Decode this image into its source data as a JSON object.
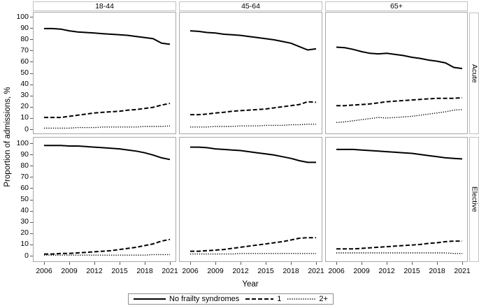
{
  "figure_colors": {
    "line": "#000000",
    "panel_border": "#a8a8a8",
    "strip_border": "#c2c2c2",
    "tick": "#5a5a5a",
    "background": "#ffffff"
  },
  "legend": {
    "items": [
      {
        "label": "No frailty syndromes",
        "style": "solid"
      },
      {
        "label": "1",
        "style": "dashed"
      },
      {
        "label": "2+",
        "style": "dotted"
      }
    ]
  },
  "chart_data": {
    "type": "line",
    "title": "",
    "xlabel": "Year",
    "ylabel": "Proportion of admissions, %",
    "ylim": [
      0,
      100
    ],
    "y_ticks": [
      0,
      10,
      20,
      30,
      40,
      50,
      60,
      70,
      80,
      90,
      100
    ],
    "x_ticks": [
      2006,
      2009,
      2012,
      2015,
      2018,
      2021
    ],
    "x": [
      2006,
      2007,
      2008,
      2009,
      2010,
      2011,
      2012,
      2013,
      2014,
      2015,
      2016,
      2017,
      2018,
      2019,
      2020,
      2021
    ],
    "grid": false,
    "legend_position": "bottom",
    "facets": {
      "columns": [
        "18-44",
        "45-64",
        "65+"
      ],
      "rows": [
        "Acute",
        "Elective"
      ]
    },
    "panels": [
      {
        "column": "18-44",
        "row": "Acute",
        "series": [
          {
            "name": "No frailty syndromes",
            "style": "solid",
            "values": [
              89.5,
              89.5,
              89,
              87.5,
              86.5,
              86,
              85.5,
              85,
              84.5,
              84,
              83.5,
              82.5,
              81.5,
              80.5,
              76.5,
              75.5
            ]
          },
          {
            "name": "1",
            "style": "dashed",
            "values": [
              10.5,
              10.5,
              10.5,
              11.5,
              12.5,
              13.5,
              14.5,
              15,
              15.5,
              16,
              17,
              17.5,
              18.5,
              19.5,
              21.5,
              23
            ]
          },
          {
            "name": "2+",
            "style": "dotted",
            "values": [
              1,
              1,
              1,
              1,
              1.5,
              1.5,
              1.5,
              2,
              2,
              2,
              2,
              2,
              2.5,
              2.5,
              2.5,
              3
            ]
          }
        ]
      },
      {
        "column": "45-64",
        "row": "Acute",
        "series": [
          {
            "name": "No frailty syndromes",
            "style": "solid",
            "values": [
              87.5,
              87,
              86,
              85.5,
              84.5,
              84,
              83.5,
              82.5,
              81.5,
              80.5,
              79.5,
              78,
              76.5,
              73.5,
              70.5,
              71.5
            ]
          },
          {
            "name": "1",
            "style": "dashed",
            "values": [
              13,
              13,
              13.5,
              14.5,
              15,
              16,
              16.5,
              17,
              17.5,
              18,
              19,
              20,
              21,
              22,
              24.5,
              24
            ]
          },
          {
            "name": "2+",
            "style": "dotted",
            "values": [
              2,
              2,
              2,
              2.5,
              2.5,
              2.5,
              3,
              3,
              3,
              3.5,
              3.5,
              3.5,
              4,
              4,
              4.5,
              4.5
            ]
          }
        ]
      },
      {
        "column": "65+",
        "row": "Acute",
        "series": [
          {
            "name": "No frailty syndromes",
            "style": "solid",
            "values": [
              73,
              72.5,
              71,
              69,
              67.5,
              67,
              67.5,
              66.5,
              65.5,
              64,
              63,
              61.5,
              60.5,
              59,
              55,
              54
            ]
          },
          {
            "name": "1",
            "style": "dashed",
            "values": [
              21,
              21,
              21.5,
              22,
              22.5,
              23.5,
              24.5,
              25,
              25.5,
              26,
              26.5,
              27,
              27.5,
              27.5,
              27.5,
              28
            ]
          },
          {
            "name": "2+",
            "style": "dotted",
            "values": [
              6,
              6.5,
              7.5,
              8.5,
              9.5,
              10.5,
              10,
              10.5,
              11,
              11.5,
              12.5,
              13.5,
              14.5,
              15.5,
              17,
              17.5
            ]
          }
        ]
      },
      {
        "column": "18-44",
        "row": "Elective",
        "series": [
          {
            "name": "No frailty syndromes",
            "style": "solid",
            "values": [
              98,
              98,
              98,
              97.5,
              97.5,
              97,
              96.5,
              96,
              95.5,
              95,
              94,
              93,
              91.5,
              89.5,
              87,
              85.5
            ]
          },
          {
            "name": "1",
            "style": "dashed",
            "values": [
              1.5,
              1.5,
              2,
              2,
              2.5,
              3,
              3.5,
              4,
              4.5,
              5.5,
              6.5,
              7.5,
              9,
              10.5,
              13,
              14.5
            ]
          },
          {
            "name": "2+",
            "style": "dotted",
            "values": [
              0.5,
              0.5,
              0.5,
              0.5,
              0.5,
              0.5,
              0.5,
              0.5,
              0.5,
              0.5,
              0.5,
              0.5,
              0.5,
              1,
              1,
              1
            ]
          }
        ]
      },
      {
        "column": "45-64",
        "row": "Elective",
        "series": [
          {
            "name": "No frailty syndromes",
            "style": "solid",
            "values": [
              96.5,
              96.5,
              96,
              95,
              94.5,
              94,
              93.5,
              92.5,
              91.5,
              90.5,
              89.5,
              88,
              86.5,
              84.5,
              83,
              83
            ]
          },
          {
            "name": "1",
            "style": "dashed",
            "values": [
              4,
              4,
              4.5,
              5,
              5.5,
              6.5,
              7.5,
              8.5,
              9.5,
              10.5,
              11.5,
              12.5,
              14,
              15.5,
              16,
              16
            ]
          },
          {
            "name": "2+",
            "style": "dotted",
            "values": [
              1.5,
              1.5,
              1.5,
              1.5,
              1.5,
              1.5,
              2,
              2,
              2,
              2,
              2,
              2,
              2,
              2,
              2,
              2
            ]
          }
        ]
      },
      {
        "column": "65+",
        "row": "Elective",
        "series": [
          {
            "name": "No frailty syndromes",
            "style": "solid",
            "values": [
              94.5,
              94.5,
              94.5,
              94,
              93.5,
              93,
              92.5,
              92,
              91.5,
              91,
              90,
              89,
              88,
              87,
              86.5,
              86
            ]
          },
          {
            "name": "1",
            "style": "dashed",
            "values": [
              6,
              6,
              6,
              6.5,
              7,
              7.5,
              8,
              8.5,
              9,
              9.5,
              10,
              11,
              11.5,
              12.5,
              13,
              13
            ]
          },
          {
            "name": "2+",
            "style": "dotted",
            "values": [
              2.5,
              2.5,
              2.5,
              2.5,
              2.5,
              2.5,
              2.5,
              2.5,
              2.5,
              2.5,
              2.5,
              2.5,
              2.5,
              2.5,
              2,
              2
            ]
          }
        ]
      }
    ]
  }
}
